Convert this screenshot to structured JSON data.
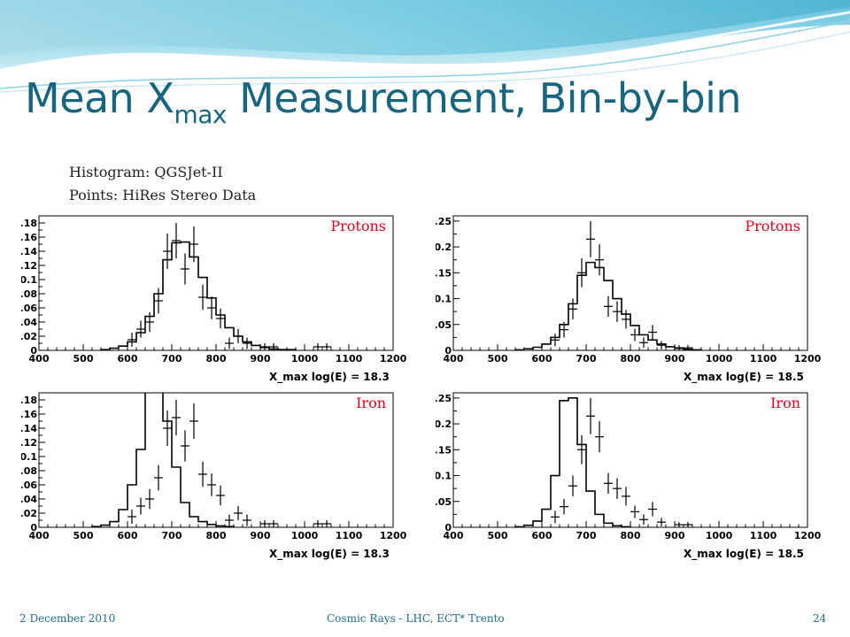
{
  "slide": {
    "title_main": "Mean X",
    "title_sub": "max",
    "title_rest": " Measurement, Bin-by-bin",
    "note_histogram": "Histogram: QGSJet-II",
    "note_points": "Points: HiRes Stereo Data",
    "footer_date": "2 December 2010",
    "footer_center": "Cosmic Rays - LHC, ECT* Trento",
    "footer_page": "24"
  },
  "colors": {
    "title": "#17657f",
    "label": "#e0001b",
    "footer": "#1f6f8c",
    "wave": "#7ccde3"
  },
  "chart_data": [
    {
      "type": "histogram",
      "panel": "top-left",
      "label": "Protons",
      "xlabel": "X_max log(E) = 18.3",
      "xlim": [
        400,
        1200
      ],
      "ylim": [
        0,
        0.19
      ],
      "xticks": [
        400,
        500,
        600,
        700,
        800,
        900,
        1000,
        1100,
        1200
      ],
      "yticks": [
        0,
        0.02,
        0.04,
        0.06,
        0.08,
        0.1,
        0.12,
        0.14,
        0.16,
        0.18
      ],
      "ytick_labels": [
        "0",
        "0.02",
        "0.04",
        "0.06",
        "0.08",
        "0.1",
        "0.12",
        "0.14",
        "0.16",
        "0.18"
      ],
      "hist": [
        [
          540,
          0.001
        ],
        [
          560,
          0.003
        ],
        [
          580,
          0.006
        ],
        [
          600,
          0.012
        ],
        [
          620,
          0.025
        ],
        [
          640,
          0.048
        ],
        [
          660,
          0.08
        ],
        [
          680,
          0.128
        ],
        [
          700,
          0.152
        ],
        [
          720,
          0.153
        ],
        [
          740,
          0.132
        ],
        [
          760,
          0.103
        ],
        [
          780,
          0.074
        ],
        [
          800,
          0.05
        ],
        [
          820,
          0.032
        ],
        [
          840,
          0.02
        ],
        [
          860,
          0.012
        ],
        [
          880,
          0.007
        ],
        [
          900,
          0.004
        ],
        [
          920,
          0.002
        ],
        [
          940,
          0.001
        ],
        [
          960,
          0.001
        ]
      ],
      "points": [
        [
          610,
          0.015,
          0.01
        ],
        [
          630,
          0.03,
          0.012
        ],
        [
          650,
          0.04,
          0.014
        ],
        [
          670,
          0.07,
          0.018
        ],
        [
          690,
          0.14,
          0.025
        ],
        [
          710,
          0.155,
          0.025
        ],
        [
          730,
          0.115,
          0.022
        ],
        [
          750,
          0.15,
          0.025
        ],
        [
          770,
          0.075,
          0.018
        ],
        [
          790,
          0.06,
          0.016
        ],
        [
          810,
          0.045,
          0.014
        ],
        [
          830,
          0.01,
          0.008
        ],
        [
          850,
          0.02,
          0.01
        ],
        [
          870,
          0.01,
          0.008
        ],
        [
          910,
          0.005,
          0.005
        ],
        [
          930,
          0.005,
          0.005
        ],
        [
          1030,
          0.005,
          0.005
        ],
        [
          1050,
          0.005,
          0.005
        ]
      ]
    },
    {
      "type": "histogram",
      "panel": "top-right",
      "label": "Protons",
      "xlabel": "X_max log(E) = 18.5",
      "xlim": [
        400,
        1200
      ],
      "ylim": [
        0,
        0.26
      ],
      "xticks": [
        400,
        500,
        600,
        700,
        800,
        900,
        1000,
        1100,
        1200
      ],
      "yticks": [
        0,
        0.05,
        0.1,
        0.15,
        0.2,
        0.25
      ],
      "ytick_labels": [
        "0",
        "0.05",
        "0.1",
        "0.15",
        "0.2",
        "0.25"
      ],
      "hist": [
        [
          540,
          0.001
        ],
        [
          560,
          0.003
        ],
        [
          580,
          0.006
        ],
        [
          600,
          0.012
        ],
        [
          620,
          0.025
        ],
        [
          640,
          0.05
        ],
        [
          660,
          0.09
        ],
        [
          680,
          0.145
        ],
        [
          700,
          0.17
        ],
        [
          720,
          0.16
        ],
        [
          740,
          0.135
        ],
        [
          760,
          0.1
        ],
        [
          780,
          0.07
        ],
        [
          800,
          0.048
        ],
        [
          820,
          0.03
        ],
        [
          840,
          0.02
        ],
        [
          860,
          0.012
        ],
        [
          880,
          0.007
        ],
        [
          900,
          0.004
        ],
        [
          920,
          0.002
        ],
        [
          940,
          0.001
        ]
      ],
      "points": [
        [
          630,
          0.02,
          0.012
        ],
        [
          650,
          0.04,
          0.015
        ],
        [
          670,
          0.08,
          0.02
        ],
        [
          690,
          0.15,
          0.028
        ],
        [
          710,
          0.215,
          0.035
        ],
        [
          730,
          0.175,
          0.03
        ],
        [
          750,
          0.085,
          0.02
        ],
        [
          770,
          0.075,
          0.02
        ],
        [
          790,
          0.06,
          0.018
        ],
        [
          810,
          0.03,
          0.012
        ],
        [
          830,
          0.015,
          0.01
        ],
        [
          850,
          0.035,
          0.014
        ],
        [
          870,
          0.01,
          0.008
        ],
        [
          910,
          0.005,
          0.005
        ],
        [
          930,
          0.005,
          0.005
        ]
      ]
    },
    {
      "type": "histogram",
      "panel": "bottom-left",
      "label": "Iron",
      "xlabel": "X_max log(E) = 18.3",
      "xlim": [
        400,
        1200
      ],
      "ylim": [
        0,
        0.19
      ],
      "xticks": [
        400,
        500,
        600,
        700,
        800,
        900,
        1000,
        1100,
        1200
      ],
      "yticks": [
        0,
        0.02,
        0.04,
        0.06,
        0.08,
        0.1,
        0.12,
        0.14,
        0.16,
        0.18
      ],
      "ytick_labels": [
        "0",
        "0.02",
        "0.04",
        "0.06",
        "0.08",
        "0.1",
        "0.12",
        "0.14",
        "0.16",
        "0.18"
      ],
      "hist": [
        [
          520,
          0.001
        ],
        [
          540,
          0.003
        ],
        [
          560,
          0.008
        ],
        [
          580,
          0.025
        ],
        [
          600,
          0.06
        ],
        [
          620,
          0.11
        ],
        [
          640,
          0.2
        ],
        [
          660,
          0.2
        ],
        [
          680,
          0.15
        ],
        [
          700,
          0.085
        ],
        [
          720,
          0.035
        ],
        [
          740,
          0.015
        ],
        [
          760,
          0.008
        ],
        [
          780,
          0.004
        ],
        [
          800,
          0.002
        ],
        [
          820,
          0.001
        ]
      ],
      "points": [
        [
          610,
          0.015,
          0.01
        ],
        [
          630,
          0.03,
          0.012
        ],
        [
          650,
          0.04,
          0.014
        ],
        [
          670,
          0.07,
          0.018
        ],
        [
          690,
          0.14,
          0.025
        ],
        [
          710,
          0.155,
          0.025
        ],
        [
          730,
          0.115,
          0.022
        ],
        [
          750,
          0.15,
          0.025
        ],
        [
          770,
          0.075,
          0.018
        ],
        [
          790,
          0.06,
          0.016
        ],
        [
          810,
          0.045,
          0.014
        ],
        [
          830,
          0.01,
          0.008
        ],
        [
          850,
          0.02,
          0.01
        ],
        [
          870,
          0.01,
          0.008
        ],
        [
          910,
          0.005,
          0.005
        ],
        [
          930,
          0.005,
          0.005
        ],
        [
          1030,
          0.005,
          0.005
        ],
        [
          1050,
          0.005,
          0.005
        ]
      ]
    },
    {
      "type": "histogram",
      "panel": "bottom-right",
      "label": "Iron",
      "xlabel": "X_max log(E) = 18.5",
      "xlim": [
        400,
        1200
      ],
      "ylim": [
        0,
        0.26
      ],
      "xticks": [
        400,
        500,
        600,
        700,
        800,
        900,
        1000,
        1100,
        1200
      ],
      "yticks": [
        0,
        0.05,
        0.1,
        0.15,
        0.2,
        0.25
      ],
      "ytick_labels": [
        "0",
        "0.05",
        "0.1",
        "0.15",
        "0.2",
        "0.25"
      ],
      "hist": [
        [
          540,
          0.001
        ],
        [
          560,
          0.004
        ],
        [
          580,
          0.012
        ],
        [
          600,
          0.035
        ],
        [
          620,
          0.1
        ],
        [
          640,
          0.245
        ],
        [
          660,
          0.25
        ],
        [
          680,
          0.16
        ],
        [
          700,
          0.07
        ],
        [
          720,
          0.025
        ],
        [
          740,
          0.008
        ],
        [
          760,
          0.003
        ],
        [
          780,
          0.001
        ]
      ],
      "points": [
        [
          630,
          0.02,
          0.012
        ],
        [
          650,
          0.04,
          0.015
        ],
        [
          670,
          0.08,
          0.02
        ],
        [
          690,
          0.15,
          0.028
        ],
        [
          710,
          0.215,
          0.035
        ],
        [
          730,
          0.175,
          0.03
        ],
        [
          750,
          0.085,
          0.02
        ],
        [
          770,
          0.075,
          0.02
        ],
        [
          790,
          0.06,
          0.018
        ],
        [
          810,
          0.03,
          0.012
        ],
        [
          830,
          0.015,
          0.01
        ],
        [
          850,
          0.035,
          0.014
        ],
        [
          870,
          0.01,
          0.008
        ],
        [
          910,
          0.005,
          0.005
        ],
        [
          930,
          0.005,
          0.005
        ]
      ]
    }
  ]
}
